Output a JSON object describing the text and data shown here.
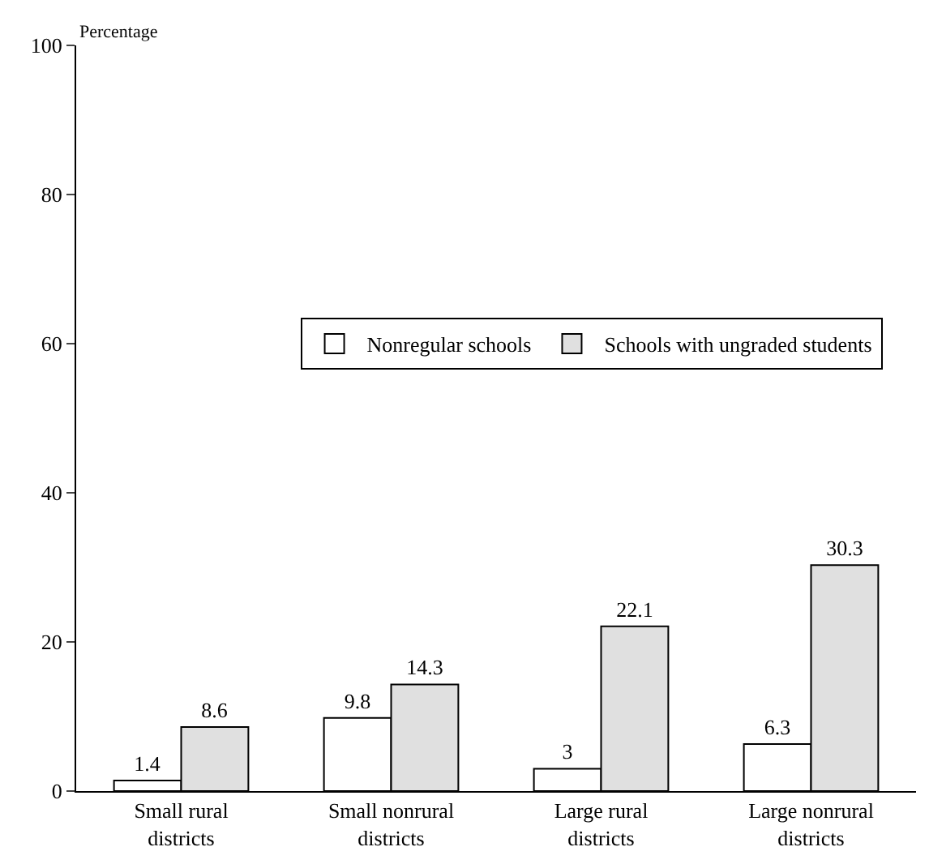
{
  "chart_data": {
    "type": "bar",
    "ylabel": "Percentage",
    "categories": [
      "Small rural districts",
      "Small nonrural districts",
      "Large rural districts",
      "Large nonrural districts"
    ],
    "series": [
      {
        "name": "Nonregular schools",
        "color": "#ffffff",
        "values": [
          1.4,
          9.8,
          3,
          6.3
        ]
      },
      {
        "name": "Schools with ungraded students",
        "color": "#e0e0e0",
        "values": [
          8.6,
          14.3,
          22.1,
          30.3
        ]
      }
    ],
    "ylim": [
      0,
      100
    ],
    "yticks": [
      0,
      20,
      40,
      60,
      80,
      100
    ],
    "legend": "right",
    "data_labels": true
  }
}
